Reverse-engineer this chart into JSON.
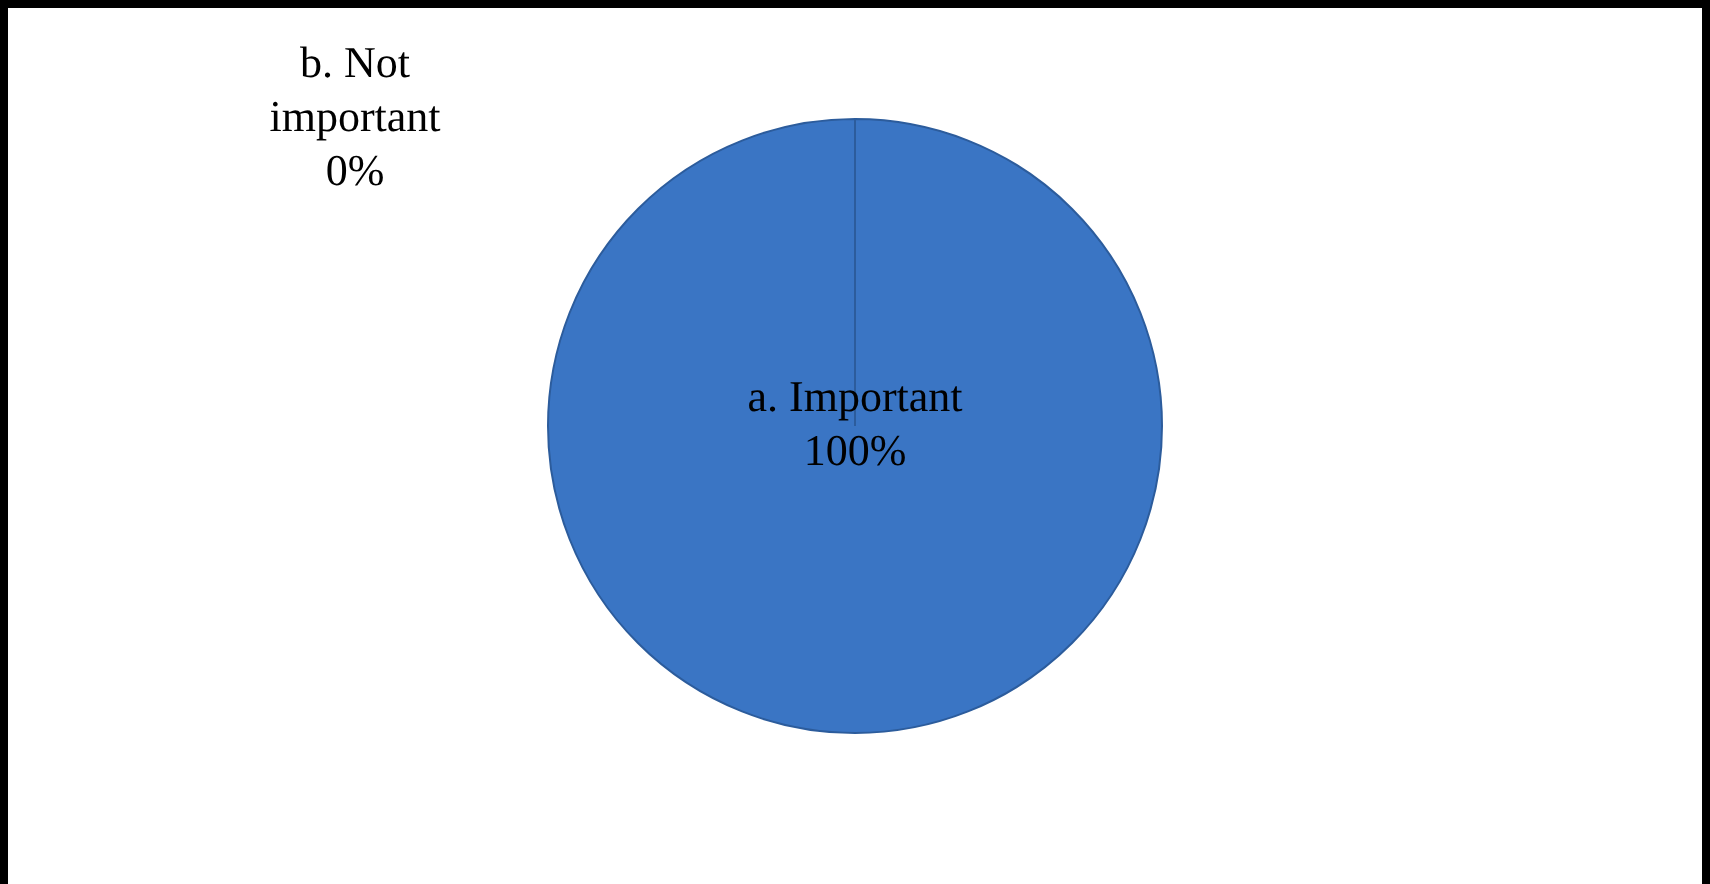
{
  "chart_data": {
    "type": "pie",
    "categories": [
      "a. Important",
      "b. Not important"
    ],
    "values": [
      100,
      0
    ],
    "colors": [
      "#3a75c4",
      "#c0504d"
    ],
    "value_labels": [
      "100%",
      "0%"
    ],
    "legend": false
  }
}
